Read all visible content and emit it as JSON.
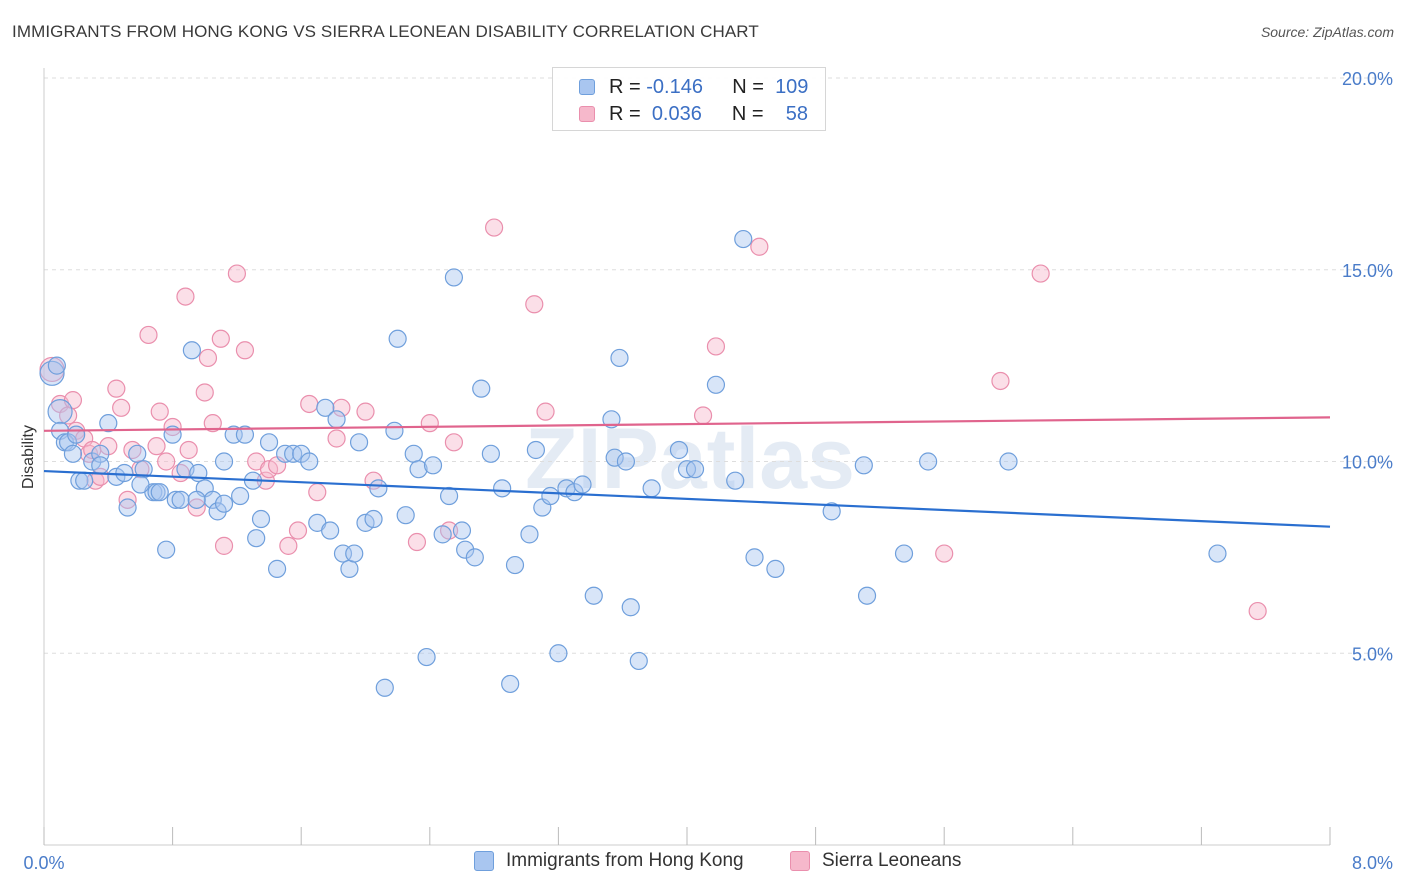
{
  "title": "IMMIGRANTS FROM HONG KONG VS SIERRA LEONEAN DISABILITY CORRELATION CHART",
  "source": "Source: ZipAtlas.com",
  "watermark": "ZIPatlas",
  "colors": {
    "blue_fill": "#a9c6f0",
    "blue_stroke": "#6f9fdc",
    "blue_line": "#2a6fd0",
    "pink_fill": "#f6b8cb",
    "pink_stroke": "#ea8fad",
    "pink_line": "#e0648d",
    "tick_text": "#4a7cc9",
    "grid": "#dddddd"
  },
  "legend_top": {
    "rows": [
      {
        "r_label": "R =",
        "r_value": "-0.146",
        "n_label": "N =",
        "n_value": "109",
        "series": "blue"
      },
      {
        "r_label": "R =",
        "r_value": "0.036",
        "n_label": "N =",
        "n_value": "58",
        "series": "pink"
      }
    ]
  },
  "legend_bottom": {
    "items": [
      {
        "label": "Immigrants from Hong Kong",
        "series": "blue"
      },
      {
        "label": "Sierra Leoneans",
        "series": "pink"
      }
    ]
  },
  "chart_data": {
    "type": "scatter",
    "title": "IMMIGRANTS FROM HONG KONG VS SIERRA LEONEAN DISABILITY CORRELATION CHART",
    "xlabel": "",
    "ylabel": "Disability",
    "xlim": [
      0.0,
      8.0
    ],
    "ylim": [
      0.0,
      20.0
    ],
    "x_tick_labels": [
      "0.0%",
      "8.0%"
    ],
    "y_ticks": [
      5.0,
      10.0,
      15.0,
      20.0
    ],
    "y_tick_labels": [
      "5.0%",
      "10.0%",
      "15.0%",
      "20.0%"
    ],
    "grid": "horizontal dashed",
    "legend": "top-center",
    "series": [
      {
        "name": "Immigrants from Hong Kong",
        "color": "#a9c6f0",
        "trend": {
          "x": [
            0.0,
            8.0
          ],
          "y": [
            9.75,
            8.3
          ]
        },
        "points": [
          [
            0.05,
            12.3
          ],
          [
            0.1,
            11.3
          ],
          [
            0.1,
            10.8
          ],
          [
            0.13,
            10.5
          ],
          [
            0.15,
            10.5
          ],
          [
            0.18,
            10.2
          ],
          [
            0.22,
            9.5
          ],
          [
            0.25,
            9.5
          ],
          [
            0.3,
            10.0
          ],
          [
            0.35,
            10.2
          ],
          [
            0.4,
            11.0
          ],
          [
            0.45,
            9.6
          ],
          [
            0.5,
            9.7
          ],
          [
            0.52,
            8.8
          ],
          [
            0.58,
            10.2
          ],
          [
            0.62,
            9.8
          ],
          [
            0.68,
            9.2
          ],
          [
            0.7,
            9.2
          ],
          [
            0.72,
            9.2
          ],
          [
            0.76,
            7.7
          ],
          [
            0.8,
            10.7
          ],
          [
            0.82,
            9.0
          ],
          [
            0.85,
            9.0
          ],
          [
            0.88,
            9.8
          ],
          [
            0.92,
            12.9
          ],
          [
            0.96,
            9.7
          ],
          [
            1.0,
            9.3
          ],
          [
            1.05,
            9.0
          ],
          [
            1.08,
            8.7
          ],
          [
            1.12,
            8.9
          ],
          [
            1.18,
            10.7
          ],
          [
            1.22,
            9.1
          ],
          [
            1.25,
            10.7
          ],
          [
            1.3,
            9.5
          ],
          [
            1.32,
            8.0
          ],
          [
            1.35,
            8.5
          ],
          [
            1.4,
            10.5
          ],
          [
            1.45,
            7.2
          ],
          [
            1.5,
            10.2
          ],
          [
            1.55,
            10.2
          ],
          [
            1.6,
            10.2
          ],
          [
            1.65,
            10.0
          ],
          [
            1.7,
            8.4
          ],
          [
            1.75,
            11.4
          ],
          [
            1.78,
            8.2
          ],
          [
            1.82,
            11.1
          ],
          [
            1.86,
            7.6
          ],
          [
            1.9,
            7.2
          ],
          [
            1.93,
            7.6
          ],
          [
            1.96,
            10.5
          ],
          [
            2.0,
            8.4
          ],
          [
            2.05,
            8.5
          ],
          [
            2.08,
            9.3
          ],
          [
            2.12,
            4.1
          ],
          [
            2.18,
            10.8
          ],
          [
            2.2,
            13.2
          ],
          [
            2.25,
            8.6
          ],
          [
            2.3,
            10.2
          ],
          [
            2.33,
            9.8
          ],
          [
            2.38,
            4.9
          ],
          [
            2.42,
            9.9
          ],
          [
            2.48,
            8.1
          ],
          [
            2.52,
            9.1
          ],
          [
            2.55,
            14.8
          ],
          [
            2.6,
            8.2
          ],
          [
            2.62,
            7.7
          ],
          [
            2.68,
            7.5
          ],
          [
            2.72,
            11.9
          ],
          [
            2.78,
            10.2
          ],
          [
            2.85,
            9.3
          ],
          [
            2.9,
            4.2
          ],
          [
            2.93,
            7.3
          ],
          [
            3.02,
            8.1
          ],
          [
            3.06,
            10.3
          ],
          [
            3.1,
            8.8
          ],
          [
            3.15,
            9.1
          ],
          [
            3.2,
            5.0
          ],
          [
            3.25,
            9.3
          ],
          [
            3.3,
            9.2
          ],
          [
            3.35,
            9.4
          ],
          [
            3.42,
            6.5
          ],
          [
            3.53,
            11.1
          ],
          [
            3.55,
            10.1
          ],
          [
            3.58,
            12.7
          ],
          [
            3.62,
            10.0
          ],
          [
            3.65,
            6.2
          ],
          [
            3.7,
            4.8
          ],
          [
            3.78,
            9.3
          ],
          [
            3.95,
            10.3
          ],
          [
            4.0,
            9.8
          ],
          [
            4.05,
            9.8
          ],
          [
            4.18,
            12.0
          ],
          [
            4.3,
            9.5
          ],
          [
            4.35,
            15.8
          ],
          [
            4.42,
            7.5
          ],
          [
            4.55,
            7.2
          ],
          [
            4.9,
            8.7
          ],
          [
            5.1,
            9.9
          ],
          [
            5.12,
            6.5
          ],
          [
            5.35,
            7.6
          ],
          [
            5.5,
            10.0
          ],
          [
            6.0,
            10.0
          ],
          [
            7.3,
            7.6
          ],
          [
            0.08,
            12.5
          ],
          [
            0.2,
            10.7
          ],
          [
            0.35,
            9.9
          ],
          [
            0.6,
            9.4
          ],
          [
            0.95,
            9.0
          ],
          [
            1.12,
            10.0
          ]
        ]
      },
      {
        "name": "Sierra Leoneans",
        "color": "#f6b8cb",
        "trend": {
          "x": [
            0.0,
            8.0
          ],
          "y": [
            10.8,
            11.15
          ]
        },
        "points": [
          [
            0.05,
            12.4
          ],
          [
            0.1,
            11.5
          ],
          [
            0.18,
            11.6
          ],
          [
            0.2,
            10.8
          ],
          [
            0.25,
            10.6
          ],
          [
            0.28,
            10.2
          ],
          [
            0.32,
            9.5
          ],
          [
            0.35,
            9.6
          ],
          [
            0.4,
            10.4
          ],
          [
            0.45,
            11.9
          ],
          [
            0.48,
            11.4
          ],
          [
            0.52,
            9.0
          ],
          [
            0.55,
            10.3
          ],
          [
            0.6,
            9.8
          ],
          [
            0.65,
            13.3
          ],
          [
            0.7,
            10.4
          ],
          [
            0.72,
            11.3
          ],
          [
            0.76,
            10.0
          ],
          [
            0.8,
            10.9
          ],
          [
            0.85,
            9.7
          ],
          [
            0.88,
            14.3
          ],
          [
            0.9,
            10.3
          ],
          [
            0.95,
            8.8
          ],
          [
            1.0,
            11.8
          ],
          [
            1.02,
            12.7
          ],
          [
            1.05,
            11.0
          ],
          [
            1.1,
            13.2
          ],
          [
            1.12,
            7.8
          ],
          [
            1.2,
            14.9
          ],
          [
            1.25,
            12.9
          ],
          [
            1.32,
            10.0
          ],
          [
            1.38,
            9.5
          ],
          [
            1.4,
            9.8
          ],
          [
            1.52,
            7.8
          ],
          [
            1.58,
            8.2
          ],
          [
            1.65,
            11.5
          ],
          [
            1.7,
            9.2
          ],
          [
            1.82,
            10.6
          ],
          [
            1.85,
            11.4
          ],
          [
            2.05,
            9.5
          ],
          [
            2.32,
            7.9
          ],
          [
            2.4,
            11.0
          ],
          [
            2.52,
            8.2
          ],
          [
            2.55,
            10.5
          ],
          [
            2.8,
            16.1
          ],
          [
            3.05,
            14.1
          ],
          [
            3.12,
            11.3
          ],
          [
            4.1,
            11.2
          ],
          [
            4.18,
            13.0
          ],
          [
            4.45,
            15.6
          ],
          [
            5.6,
            7.6
          ],
          [
            5.95,
            12.1
          ],
          [
            6.2,
            14.9
          ],
          [
            7.55,
            6.1
          ],
          [
            0.15,
            11.2
          ],
          [
            0.3,
            10.3
          ],
          [
            1.45,
            9.9
          ],
          [
            2.0,
            11.3
          ]
        ]
      }
    ]
  }
}
